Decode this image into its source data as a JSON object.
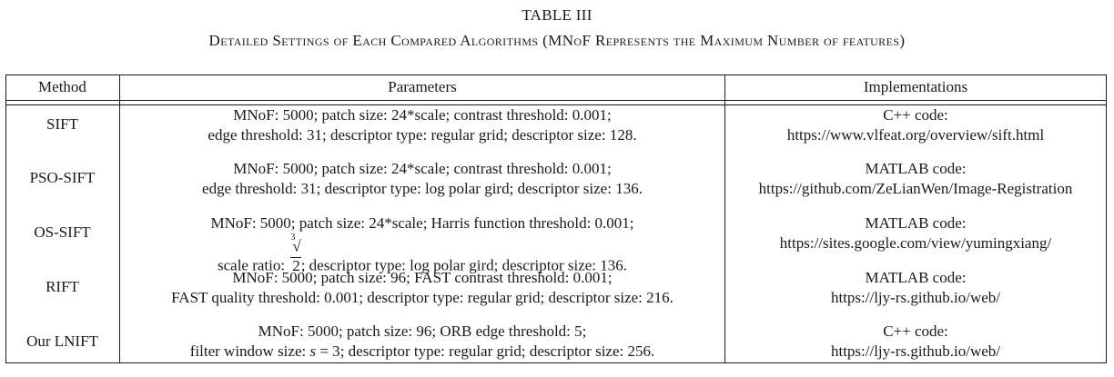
{
  "table_number": "TABLE III",
  "caption": "Detailed Settings of Each Compared Algorithms (MNoF Represents the Maximum Number of features)",
  "headers": {
    "method": "Method",
    "parameters": "Parameters",
    "implementations": "Implementations"
  },
  "rows": [
    {
      "method": "SIFT",
      "params_line1": "MNoF: 5000; patch size: 24*scale; contrast threshold: 0.001;",
      "params_line2": "edge threshold: 31; descriptor type: regular grid; descriptor size: 128.",
      "impl_line1": "C++ code:",
      "impl_line2": "https://www.vlfeat.org/overview/sift.html"
    },
    {
      "method": "PSO-SIFT",
      "params_line1": "MNoF: 5000; patch size: 24*scale; contrast threshold: 0.001;",
      "params_line2": "edge threshold: 31; descriptor type: log polar gird; descriptor size: 136.",
      "impl_line1": "MATLAB code:",
      "impl_line2": "https://github.com/ZeLianWen/Image-Registration"
    },
    {
      "method": "OS-SIFT",
      "params_line1": "MNoF: 5000; patch size: 24*scale; Harris function threshold: 0.001;",
      "params_line2_prefix": "scale ratio:",
      "params_line2_root_index": "3",
      "params_line2_radicand": "2",
      "params_line2_suffix": "; descriptor type: log polar gird; descriptor size: 136.",
      "impl_line1": "MATLAB code:",
      "impl_line2": "https://sites.google.com/view/yumingxiang/"
    },
    {
      "method": "RIFT",
      "params_line1": "MNoF: 5000; patch size: 96; FAST contrast threshold: 0.001;",
      "params_line2": "FAST quality threshold: 0.001; descriptor type: regular grid; descriptor size: 216.",
      "impl_line1": "MATLAB code:",
      "impl_line2": "https://ljy-rs.github.io/web/"
    },
    {
      "method": "Our LNIFT",
      "params_line1": "MNoF: 5000; patch size: 96; ORB edge threshold: 5;",
      "params_line2_prefix": "filter window size:",
      "params_line2_var": "s",
      "params_line2_eq": " = 3",
      "params_line2_suffix": "; descriptor type: regular grid; descriptor size: 256.",
      "impl_line1": "C++ code:",
      "impl_line2": "https://ljy-rs.github.io/web/"
    }
  ]
}
